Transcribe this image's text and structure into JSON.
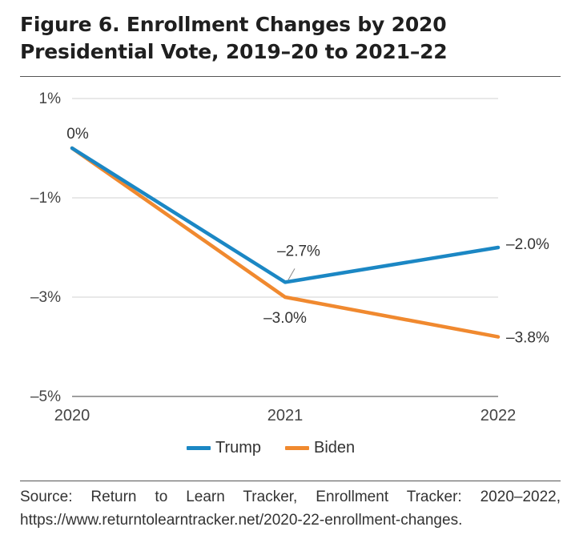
{
  "title": "Figure 6. Enrollment Changes by 2020 Presidential Vote, 2019–20 to 2021–22",
  "source": "Source: Return to Learn Tracker, Enrollment Tracker: 2020–2022, https://www.returntolearntracker.net/2020-22-enrollment-changes.",
  "chart_data": {
    "type": "line",
    "categories": [
      "2020",
      "2021",
      "2022"
    ],
    "ylim": [
      -5,
      1
    ],
    "yticks": [
      1,
      -1,
      -3,
      -5
    ],
    "ytick_labels": [
      "1%",
      "–1%",
      "–3%",
      "–5%"
    ],
    "grid": true,
    "legend_position": "bottom",
    "series": [
      {
        "name": "Trump",
        "color": "#1b87c4",
        "values": [
          0,
          -2.7,
          -2.0
        ],
        "labels": [
          "0%",
          "–2.7%",
          "–2.0%"
        ]
      },
      {
        "name": "Biden",
        "color": "#f0892f",
        "values": [
          0,
          -3.0,
          -3.8
        ],
        "labels": [
          "",
          "–3.0%",
          "–3.8%"
        ]
      }
    ]
  }
}
